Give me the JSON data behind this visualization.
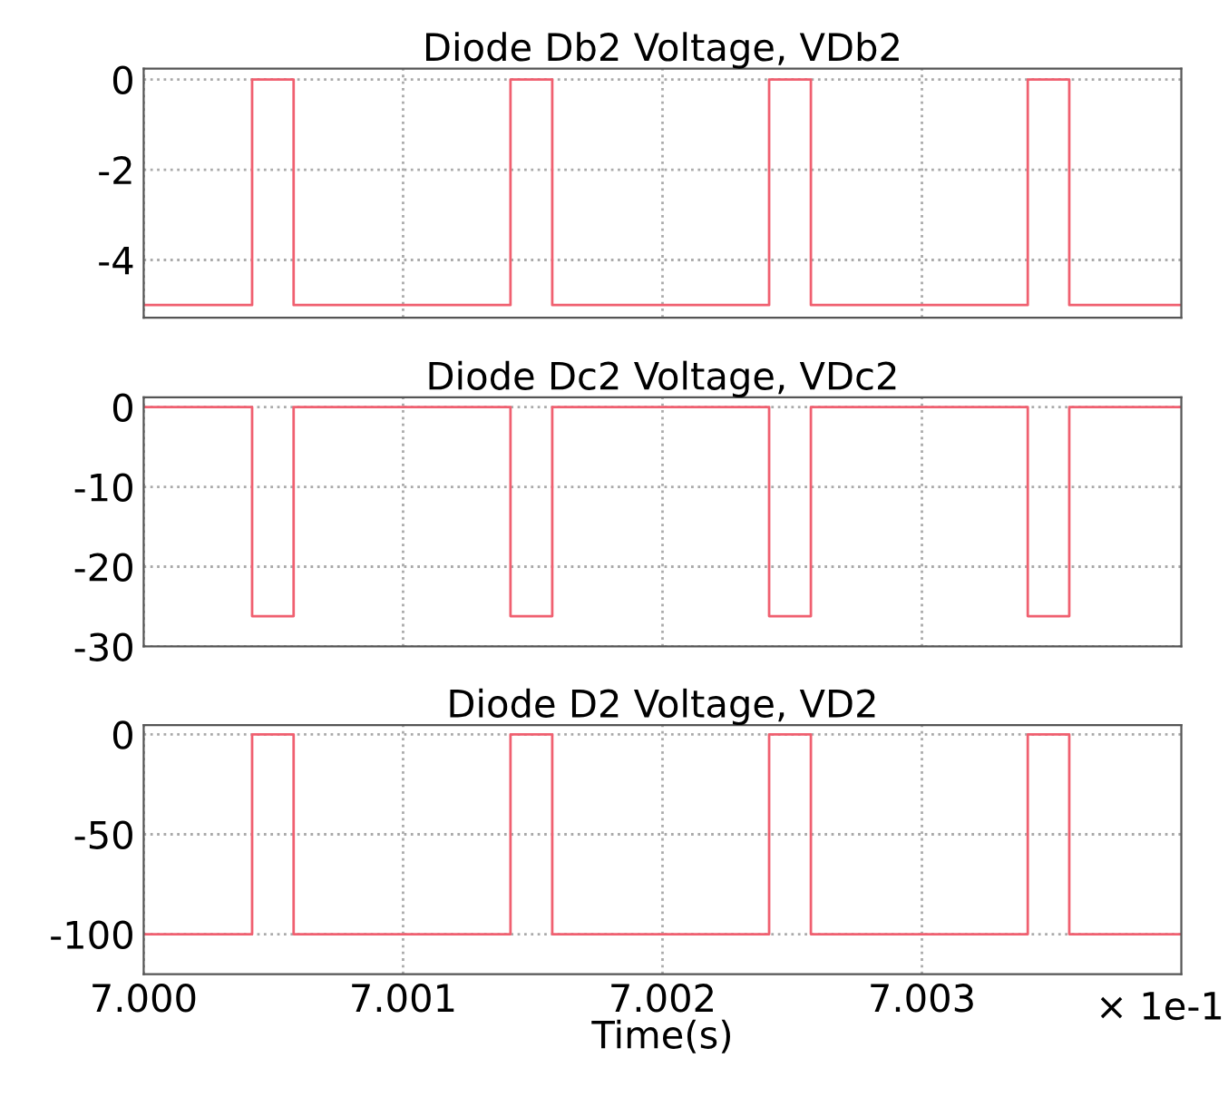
{
  "chart_data": [
    {
      "type": "step",
      "title": "Diode Db2 Voltage, VDb2",
      "x": [
        7.0,
        7.000418,
        7.000578,
        7.001414,
        7.001575,
        7.002411,
        7.002572,
        7.003408,
        7.003568,
        7.004
      ],
      "series": [
        {
          "color": "#f06070",
          "values": [
            -5,
            0,
            -5,
            0,
            -5,
            0,
            -5,
            0,
            -5,
            -5
          ]
        }
      ],
      "xlim": [
        7.0,
        7.004
      ],
      "xticks": [
        {
          "value": 7.0,
          "label": null
        },
        {
          "value": 7.001,
          "label": null
        },
        {
          "value": 7.002,
          "label": null
        },
        {
          "value": 7.003,
          "label": null
        }
      ],
      "ylim": [
        -5.28,
        0.24
      ],
      "yticks": [
        0,
        -2,
        -4
      ],
      "grid": true,
      "tick_labels": "y",
      "line_style": "solid"
    },
    {
      "type": "step",
      "title": "Diode Dc2 Voltage, VDc2",
      "x": [
        7.0,
        7.000418,
        7.000578,
        7.001414,
        7.001575,
        7.002411,
        7.002572,
        7.003408,
        7.003568,
        7.004
      ],
      "series": [
        {
          "color": "#f06070",
          "values": [
            0,
            -26.2,
            0,
            -26.2,
            0,
            -26.2,
            0,
            -26.2,
            0,
            0
          ]
        }
      ],
      "xlim": [
        7.0,
        7.004
      ],
      "xticks": [
        {
          "value": 7.0,
          "label": null
        },
        {
          "value": 7.001,
          "label": null
        },
        {
          "value": 7.002,
          "label": null
        },
        {
          "value": 7.003,
          "label": null
        }
      ],
      "ylim": [
        -30,
        1.2
      ],
      "yticks": [
        0,
        -10,
        -20,
        -30
      ],
      "grid": true,
      "tick_labels": "y",
      "line_style": "solid"
    },
    {
      "type": "step",
      "title": "Diode D2 Voltage, VD2",
      "xlabel": "Time(s)",
      "annotations": [
        "× 1e-1"
      ],
      "x": [
        7.0,
        7.000418,
        7.000578,
        7.001414,
        7.001575,
        7.002411,
        7.002572,
        7.003408,
        7.003568,
        7.004
      ],
      "series": [
        {
          "color": "#f06070",
          "values": [
            -100,
            0,
            -100,
            0,
            -100,
            0,
            -100,
            0,
            -100,
            -100
          ]
        }
      ],
      "xlim": [
        7.0,
        7.004
      ],
      "xticks": [
        {
          "value": 7.0,
          "label": "7.000"
        },
        {
          "value": 7.001,
          "label": "7.001"
        },
        {
          "value": 7.002,
          "label": "7.002"
        },
        {
          "value": 7.003,
          "label": "7.003"
        }
      ],
      "ylim": [
        -120,
        4.7
      ],
      "yticks": [
        0,
        -50,
        -100
      ],
      "grid": true,
      "line_style": "solid"
    }
  ]
}
